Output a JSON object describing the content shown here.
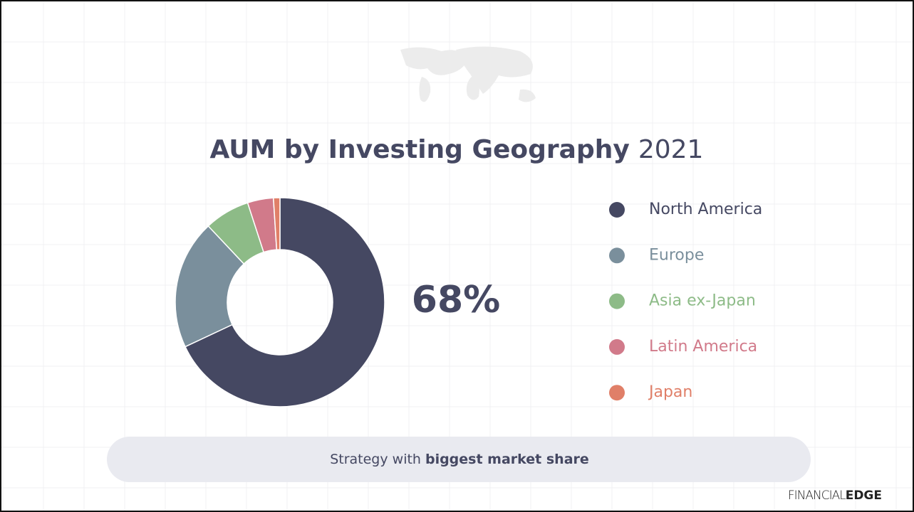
{
  "chart_data": {
    "type": "pie",
    "title": "AUM by Investing Geography",
    "title_year": "2021",
    "categories": [
      "North America",
      "Europe",
      "Asia ex-Japan",
      "Latin America",
      "Japan"
    ],
    "values": [
      68,
      20,
      7,
      4,
      1
    ],
    "value_labels": [
      "68%",
      null,
      null,
      null,
      null
    ],
    "colors": [
      "#454862",
      "#7a8f9c",
      "#8dbb87",
      "#d17a8a",
      "#e07f68"
    ],
    "note": {
      "prefix": "Strategy with",
      "emphasis": "biggest market share"
    },
    "logo": {
      "light": "FINANCIAL",
      "bold": "EDGE"
    }
  }
}
